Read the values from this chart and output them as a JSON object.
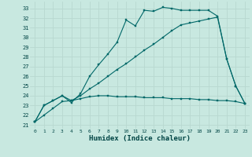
{
  "bg_color": "#c8e8e0",
  "grid_color": "#b8d8d0",
  "line_color": "#006868",
  "xlabel": "Humidex (Indice chaleur)",
  "xlim": [
    -0.5,
    23.5
  ],
  "ylim": [
    20.6,
    33.7
  ],
  "xticks": [
    0,
    1,
    2,
    3,
    4,
    5,
    6,
    7,
    8,
    9,
    10,
    11,
    12,
    13,
    14,
    15,
    16,
    17,
    18,
    19,
    20,
    21,
    22,
    23
  ],
  "yticks": [
    21,
    22,
    23,
    24,
    25,
    26,
    27,
    28,
    29,
    30,
    31,
    32,
    33
  ],
  "series1_x": [
    0,
    1,
    2,
    3,
    4,
    5,
    6,
    7,
    8,
    9,
    10,
    11,
    12,
    13,
    14,
    15,
    16,
    17,
    18,
    19,
    20,
    21,
    22,
    23
  ],
  "series1_y": [
    21.3,
    23.0,
    23.5,
    24.0,
    23.5,
    23.7,
    23.9,
    24.0,
    24.0,
    23.9,
    23.9,
    23.9,
    23.8,
    23.8,
    23.8,
    23.7,
    23.7,
    23.7,
    23.6,
    23.6,
    23.5,
    23.5,
    23.4,
    23.2
  ],
  "series2_x": [
    0,
    1,
    2,
    3,
    4,
    5,
    6,
    7,
    8,
    9,
    10,
    11,
    12,
    13,
    14,
    15,
    16,
    17,
    18,
    19,
    20,
    21,
    22,
    23
  ],
  "series2_y": [
    21.3,
    22.0,
    22.7,
    23.4,
    23.5,
    24.0,
    24.7,
    25.3,
    26.0,
    26.7,
    27.3,
    28.0,
    28.7,
    29.3,
    30.0,
    30.7,
    31.3,
    31.5,
    31.7,
    31.9,
    32.1,
    27.8,
    25.0,
    23.2
  ],
  "series3_x": [
    0,
    1,
    2,
    3,
    4,
    5,
    6,
    7,
    8,
    9,
    10,
    11,
    12,
    13,
    14,
    15,
    16,
    17,
    18,
    19,
    20,
    21,
    22,
    23
  ],
  "series3_y": [
    21.3,
    23.0,
    23.5,
    24.0,
    23.3,
    24.2,
    26.0,
    27.2,
    28.3,
    29.5,
    31.8,
    31.2,
    32.8,
    32.7,
    33.1,
    33.0,
    32.8,
    32.8,
    32.8,
    32.8,
    32.2,
    27.8,
    25.0,
    23.2
  ]
}
